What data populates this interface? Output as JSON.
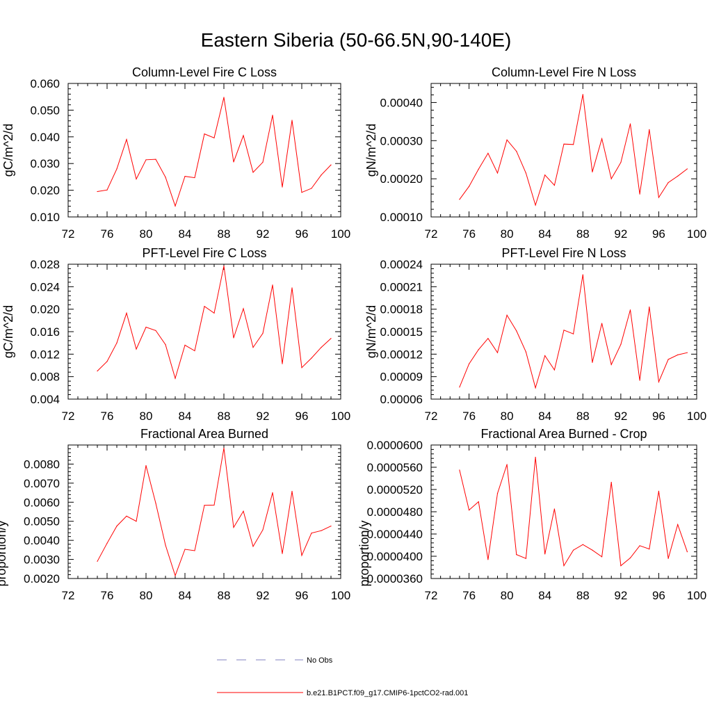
{
  "title": "Eastern Siberia (50-66.5N,90-140E)",
  "colors": {
    "model": "#ff0000",
    "obs": "#8080c0",
    "axis": "#000000"
  },
  "legend": {
    "obs_label": "No Obs",
    "model_label": "b.e21.B1PCT.f09_g17.CMIP6-1pctCO2-rad.001"
  },
  "chart_data": [
    {
      "type": "line",
      "title": "Column-Level Fire C Loss",
      "ylabel": "gC/m^2/d",
      "xlim": [
        72,
        100
      ],
      "x_ticks": [
        "72",
        "76",
        "80",
        "84",
        "88",
        "92",
        "96",
        "100"
      ],
      "ylim": [
        0.01,
        0.06
      ],
      "y_ticks": [
        "0.010",
        "0.020",
        "0.030",
        "0.040",
        "0.050",
        "0.060"
      ],
      "x": [
        75,
        76,
        77,
        78,
        79,
        80,
        81,
        82,
        83,
        84,
        85,
        86,
        87,
        88,
        89,
        90,
        91,
        92,
        93,
        94,
        95,
        96,
        97,
        98,
        99
      ],
      "series": [
        {
          "name": "b.e21.B1PCT.f09_g17.CMIP6-1pctCO2-rad.001",
          "values": [
            0.0195,
            0.0201,
            0.028,
            0.039,
            0.0242,
            0.0314,
            0.0316,
            0.0249,
            0.0141,
            0.0252,
            0.0247,
            0.0411,
            0.0396,
            0.0548,
            0.0306,
            0.0405,
            0.0267,
            0.0305,
            0.0481,
            0.0212,
            0.0462,
            0.0192,
            0.0207,
            0.0257,
            0.0295
          ]
        }
      ]
    },
    {
      "type": "line",
      "title": "Column-Level Fire N Loss",
      "ylabel": "gN/m^2/d",
      "xlim": [
        72,
        100
      ],
      "x_ticks": [
        "72",
        "76",
        "80",
        "84",
        "88",
        "92",
        "96",
        "100"
      ],
      "ylim": [
        0.0001,
        0.00045
      ],
      "y_ticks": [
        "0.00010",
        "0.00020",
        "0.00030",
        "0.00040"
      ],
      "x": [
        75,
        76,
        77,
        78,
        79,
        80,
        81,
        82,
        83,
        84,
        85,
        86,
        87,
        88,
        89,
        90,
        91,
        92,
        93,
        94,
        95,
        96,
        97,
        98,
        99
      ],
      "series": [
        {
          "name": "b.e21.B1PCT.f09_g17.CMIP6-1pctCO2-rad.001",
          "values": [
            0.000146,
            0.00018,
            0.000225,
            0.000267,
            0.000215,
            0.000302,
            0.000272,
            0.000215,
            0.000131,
            0.00021,
            0.000183,
            0.000291,
            0.00029,
            0.000421,
            0.000218,
            0.000305,
            0.0002,
            0.000243,
            0.000344,
            0.00016,
            0.000329,
            0.000151,
            0.00019,
            0.000207,
            0.000226
          ]
        }
      ]
    },
    {
      "type": "line",
      "title": "PFT-Level Fire C Loss",
      "ylabel": "gC/m^2/d",
      "xlim": [
        72,
        100
      ],
      "x_ticks": [
        "72",
        "76",
        "80",
        "84",
        "88",
        "92",
        "96",
        "100"
      ],
      "ylim": [
        0.004,
        0.028
      ],
      "y_ticks": [
        "0.004",
        "0.008",
        "0.012",
        "0.016",
        "0.020",
        "0.024",
        "0.028"
      ],
      "x": [
        75,
        76,
        77,
        78,
        79,
        80,
        81,
        82,
        83,
        84,
        85,
        86,
        87,
        88,
        89,
        90,
        91,
        92,
        93,
        94,
        95,
        96,
        97,
        98,
        99
      ],
      "series": [
        {
          "name": "b.e21.B1PCT.f09_g17.CMIP6-1pctCO2-rad.001",
          "values": [
            0.009,
            0.0107,
            0.014,
            0.0193,
            0.0129,
            0.0168,
            0.0162,
            0.0137,
            0.0077,
            0.0136,
            0.0126,
            0.0205,
            0.0193,
            0.0277,
            0.0149,
            0.0201,
            0.0132,
            0.0157,
            0.0243,
            0.0103,
            0.0238,
            0.0096,
            0.0113,
            0.0132,
            0.0148
          ]
        }
      ]
    },
    {
      "type": "line",
      "title": "PFT-Level Fire N Loss",
      "ylabel": "gN/m^2/d",
      "xlim": [
        72,
        100
      ],
      "x_ticks": [
        "72",
        "76",
        "80",
        "84",
        "88",
        "92",
        "96",
        "100"
      ],
      "ylim": [
        6e-05,
        0.00024
      ],
      "y_ticks": [
        "0.00006",
        "0.00009",
        "0.00012",
        "0.00015",
        "0.00018",
        "0.00021",
        "0.00024"
      ],
      "x": [
        75,
        76,
        77,
        78,
        79,
        80,
        81,
        82,
        83,
        84,
        85,
        86,
        87,
        88,
        89,
        90,
        91,
        92,
        93,
        94,
        95,
        96,
        97,
        98,
        99
      ],
      "series": [
        {
          "name": "b.e21.B1PCT.f09_g17.CMIP6-1pctCO2-rad.001",
          "values": [
            7.6e-05,
            0.000107,
            0.000126,
            0.000141,
            0.000122,
            0.000172,
            0.000151,
            0.000123,
            7.5e-05,
            0.000118,
            9.9e-05,
            0.000152,
            0.000147,
            0.000226,
            0.000109,
            0.000161,
            0.000106,
            0.000133,
            0.000179,
            8.5e-05,
            0.000183,
            8.3e-05,
            0.000113,
            0.000119,
            0.000122
          ]
        }
      ]
    },
    {
      "type": "line",
      "title": "Fractional Area Burned",
      "ylabel": "proportion/y",
      "xlim": [
        72,
        100
      ],
      "x_ticks": [
        "72",
        "76",
        "80",
        "84",
        "88",
        "92",
        "96",
        "100"
      ],
      "ylim": [
        0.002,
        0.009
      ],
      "y_ticks": [
        "0.0020",
        "0.0030",
        "0.0040",
        "0.0050",
        "0.0060",
        "0.0070",
        "0.0080"
      ],
      "x": [
        75,
        76,
        77,
        78,
        79,
        80,
        81,
        82,
        83,
        84,
        85,
        86,
        87,
        88,
        89,
        90,
        91,
        92,
        93,
        94,
        95,
        96,
        97,
        98,
        99
      ],
      "series": [
        {
          "name": "b.e21.B1PCT.f09_g17.CMIP6-1pctCO2-rad.001",
          "values": [
            0.0029,
            0.00385,
            0.00475,
            0.00527,
            0.005,
            0.00792,
            0.00595,
            0.00375,
            0.00215,
            0.00353,
            0.00346,
            0.00584,
            0.00585,
            0.00884,
            0.00468,
            0.00553,
            0.00368,
            0.00455,
            0.0065,
            0.00331,
            0.00657,
            0.00321,
            0.00438,
            0.00451,
            0.00475
          ]
        }
      ]
    },
    {
      "type": "line",
      "title": "Fractional Area Burned - Crop",
      "ylabel": "proportion/y",
      "xlim": [
        72,
        100
      ],
      "x_ticks": [
        "72",
        "76",
        "80",
        "84",
        "88",
        "92",
        "96",
        "100"
      ],
      "ylim": [
        3.6e-05,
        6e-05
      ],
      "y_ticks": [
        "0.0000360",
        "0.0000400",
        "0.0000440",
        "0.0000480",
        "0.0000520",
        "0.0000560",
        "0.0000600"
      ],
      "x": [
        75,
        76,
        77,
        78,
        79,
        80,
        81,
        82,
        83,
        84,
        85,
        86,
        87,
        88,
        89,
        90,
        91,
        92,
        93,
        94,
        95,
        96,
        97,
        98,
        99
      ],
      "series": [
        {
          "name": "b.e21.B1PCT.f09_g17.CMIP6-1pctCO2-rad.001",
          "values": [
            5.55e-05,
            4.83e-05,
            4.98e-05,
            3.94e-05,
            5.13e-05,
            5.65e-05,
            4.03e-05,
            3.96e-05,
            5.78e-05,
            4.04e-05,
            4.85e-05,
            3.83e-05,
            4.11e-05,
            4.21e-05,
            4.11e-05,
            3.99e-05,
            5.33e-05,
            3.83e-05,
            3.97e-05,
            4.19e-05,
            4.13e-05,
            5.17e-05,
            3.96e-05,
            4.57e-05,
            4.08e-05
          ]
        }
      ]
    }
  ]
}
